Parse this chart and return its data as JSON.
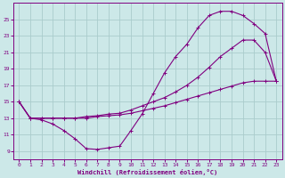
{
  "xlabel": "Windchill (Refroidissement éolien,°C)",
  "xlim": [
    -0.5,
    23.5
  ],
  "ylim": [
    8.0,
    27.0
  ],
  "yticks": [
    9,
    11,
    13,
    15,
    17,
    19,
    21,
    23,
    25
  ],
  "xticks": [
    0,
    1,
    2,
    3,
    4,
    5,
    6,
    7,
    8,
    9,
    10,
    11,
    12,
    13,
    14,
    15,
    16,
    17,
    18,
    19,
    20,
    21,
    22,
    23
  ],
  "bg_color": "#cce8e8",
  "line_color": "#800080",
  "grid_color": "#aacccc",
  "line1_x": [
    0,
    1,
    2,
    3,
    4,
    5,
    6,
    7,
    8,
    9,
    10,
    11,
    12,
    13,
    14,
    15,
    16,
    17,
    18,
    19,
    20,
    21,
    22,
    23
  ],
  "line1_y": [
    15.0,
    13.0,
    12.8,
    12.3,
    11.5,
    10.5,
    9.3,
    9.2,
    9.4,
    9.6,
    11.5,
    13.5,
    16.0,
    18.5,
    20.5,
    22.0,
    24.0,
    25.5,
    26.0,
    26.0,
    25.5,
    24.5,
    23.3,
    17.5
  ],
  "line2_x": [
    0,
    1,
    2,
    3,
    4,
    5,
    6,
    7,
    8,
    9,
    10,
    11,
    12,
    13,
    14,
    15,
    16,
    17,
    18,
    19,
    20,
    21,
    22,
    23
  ],
  "line2_y": [
    15.0,
    13.0,
    13.0,
    13.0,
    13.0,
    13.0,
    13.2,
    13.3,
    13.5,
    13.6,
    14.0,
    14.5,
    15.0,
    15.5,
    16.2,
    17.0,
    18.0,
    19.2,
    20.5,
    21.5,
    22.5,
    22.5,
    21.0,
    17.5
  ],
  "line3_x": [
    0,
    1,
    2,
    3,
    4,
    5,
    6,
    7,
    8,
    9,
    10,
    11,
    12,
    13,
    14,
    15,
    16,
    17,
    18,
    19,
    20,
    21,
    22,
    23
  ],
  "line3_y": [
    15.0,
    13.0,
    13.0,
    13.0,
    13.0,
    13.0,
    13.0,
    13.2,
    13.3,
    13.4,
    13.6,
    13.9,
    14.2,
    14.5,
    14.9,
    15.3,
    15.7,
    16.1,
    16.5,
    16.9,
    17.3,
    17.5,
    17.5,
    17.5
  ]
}
